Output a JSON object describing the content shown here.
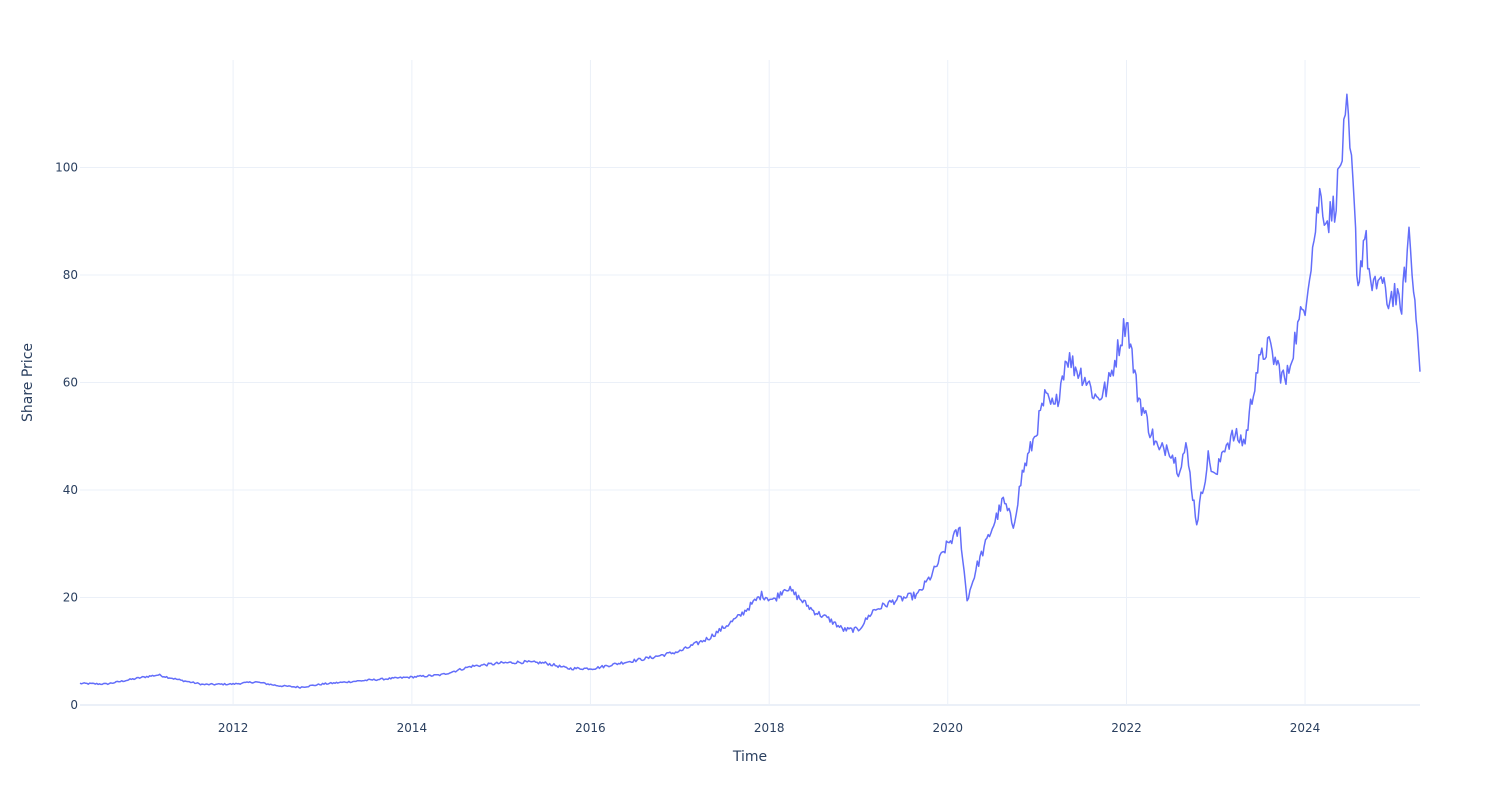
{
  "chart_data": {
    "type": "line",
    "title": "",
    "xlabel": "Time",
    "ylabel": "Share Price",
    "xlim": [
      "2010-04-15",
      "2025-04-15"
    ],
    "ylim": [
      0,
      120
    ],
    "grid": true,
    "legend": "none",
    "line_color": "#636efa",
    "x_ticks": [
      {
        "date": "2012-01-01",
        "label": "2012"
      },
      {
        "date": "2014-01-01",
        "label": "2014"
      },
      {
        "date": "2016-01-01",
        "label": "2016"
      },
      {
        "date": "2018-01-01",
        "label": "2018"
      },
      {
        "date": "2020-01-01",
        "label": "2020"
      },
      {
        "date": "2022-01-01",
        "label": "2022"
      },
      {
        "date": "2024-01-01",
        "label": "2024"
      }
    ],
    "y_ticks": [
      {
        "value": 0,
        "label": "0"
      },
      {
        "value": 20,
        "label": "20"
      },
      {
        "value": 40,
        "label": "40"
      },
      {
        "value": 60,
        "label": "60"
      },
      {
        "value": 80,
        "label": "80"
      },
      {
        "value": 100,
        "label": "100"
      }
    ],
    "series": [
      {
        "x": [
          "2010-04-15",
          "2010-08-01",
          "2011-01-01",
          "2011-03-01",
          "2011-06-01",
          "2011-09-01",
          "2012-01-01",
          "2012-04-01",
          "2012-07-01",
          "2012-10-01",
          "2013-01-01",
          "2013-07-01",
          "2014-01-01",
          "2014-05-01",
          "2014-09-01",
          "2015-01-01",
          "2015-04-01",
          "2015-07-01",
          "2015-10-01",
          "2016-01-15",
          "2016-05-01",
          "2016-09-01",
          "2017-01-01",
          "2017-05-01",
          "2017-09-01",
          "2017-12-01",
          "2018-01-20",
          "2018-03-10",
          "2018-05-01",
          "2018-07-01",
          "2018-09-01",
          "2018-11-01",
          "2019-01-01",
          "2019-03-01",
          "2019-06-01",
          "2019-09-01",
          "2019-11-01",
          "2020-01-01",
          "2020-02-20",
          "2020-03-20",
          "2020-05-01",
          "2020-07-01",
          "2020-08-15",
          "2020-09-25",
          "2020-11-01",
          "2020-12-15",
          "2021-02-01",
          "2021-03-15",
          "2021-05-01",
          "2021-06-01",
          "2021-07-15",
          "2021-09-01",
          "2021-10-15",
          "2021-11-20",
          "2022-01-01",
          "2022-02-15",
          "2022-04-01",
          "2022-05-15",
          "2022-06-20",
          "2022-08-01",
          "2022-09-01",
          "2022-10-15",
          "2022-12-01",
          "2023-01-01",
          "2023-02-01",
          "2023-03-15",
          "2023-05-01",
          "2023-06-15",
          "2023-08-01",
          "2023-09-01",
          "2023-10-15",
          "2023-11-20",
          "2024-01-01",
          "2024-02-01",
          "2024-03-01",
          "2024-04-01",
          "2024-05-01",
          "2024-06-01",
          "2024-06-20",
          "2024-07-15",
          "2024-08-05",
          "2024-09-01",
          "2024-10-01",
          "2024-11-01",
          "2024-12-01",
          "2025-01-01",
          "2025-01-25",
          "2025-02-15",
          "2025-03-01",
          "2025-03-20",
          "2025-04-04",
          "2025-04-15"
        ],
        "y": [
          4.0,
          3.9,
          5.2,
          5.6,
          4.6,
          3.8,
          3.9,
          4.3,
          3.6,
          3.3,
          3.9,
          4.6,
          5.2,
          5.6,
          7.2,
          7.8,
          8.0,
          7.8,
          6.8,
          6.8,
          7.8,
          8.8,
          10.0,
          12.5,
          16.5,
          20.5,
          19.5,
          22.0,
          20.0,
          17.5,
          16.0,
          14.0,
          14.0,
          17.5,
          19.5,
          20.5,
          24.5,
          30.0,
          32.5,
          19.5,
          26.0,
          33.0,
          38.0,
          33.5,
          43.0,
          49.0,
          57.0,
          55.0,
          65.0,
          63.0,
          61.0,
          57.0,
          59.0,
          65.0,
          72.0,
          58.0,
          52.0,
          47.0,
          48.5,
          44.0,
          48.0,
          34.0,
          46.0,
          42.0,
          48.0,
          50.0,
          49.0,
          62.0,
          67.0,
          64.0,
          60.0,
          68.0,
          75.0,
          85.0,
          95.0,
          90.0,
          93.0,
          103.0,
          110.0,
          96.0,
          78.0,
          88.0,
          76.0,
          80.0,
          75.0,
          77.0,
          73.0,
          81.0,
          88.0,
          77.0,
          72.0,
          62.0
        ]
      }
    ]
  }
}
